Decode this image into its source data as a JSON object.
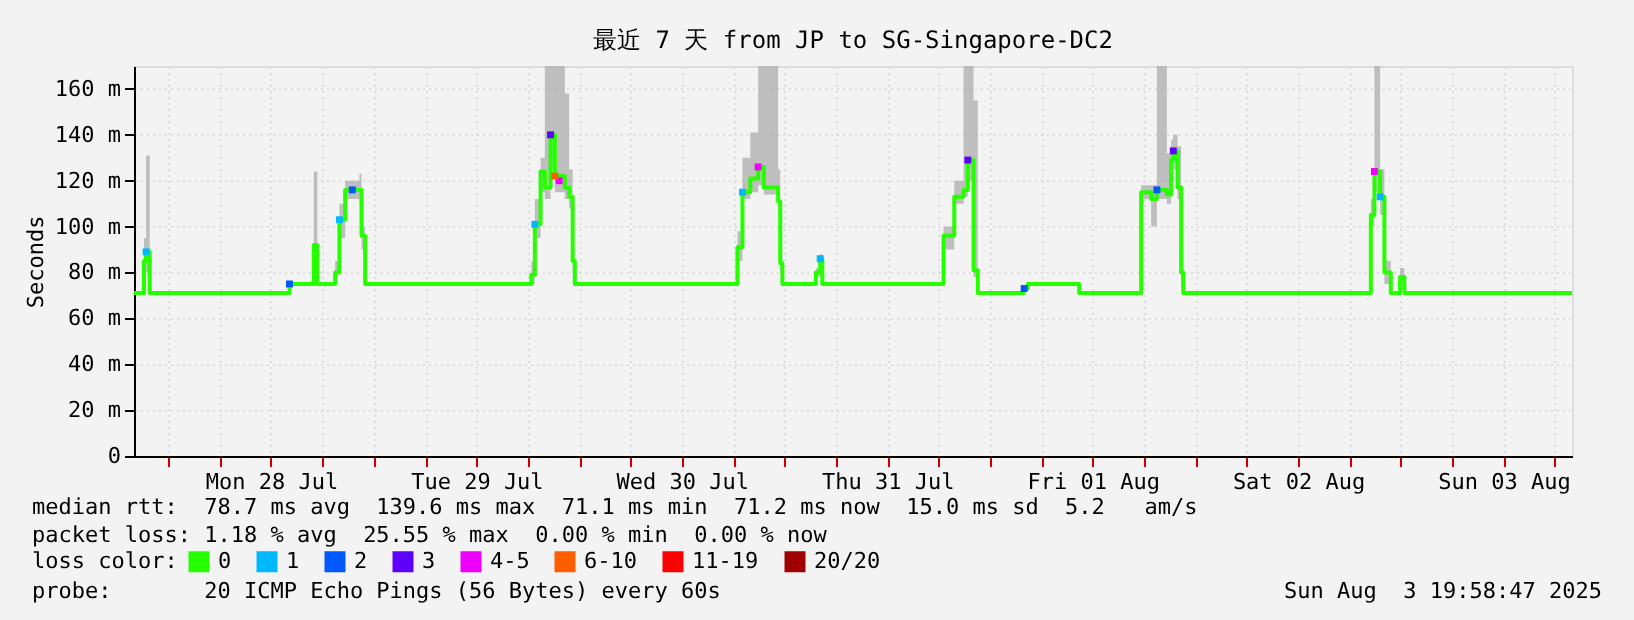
{
  "chart_data": {
    "type": "step",
    "title": "最近 7 天 from JP to SG-Singapore-DC2",
    "ylabel": "Seconds",
    "legend_title": "loss color:",
    "xlim": [
      "2025-07-27T20:00",
      "2025-08-03T20:00"
    ],
    "xticks": [
      {
        "value": "2025-07-28T00:00",
        "label": null
      },
      {
        "value": "2025-07-28T06:00",
        "label": null
      },
      {
        "value": "2025-07-28T12:00",
        "label": "Mon 28 Jul"
      },
      {
        "value": "2025-07-28T18:00",
        "label": null
      },
      {
        "value": "2025-07-29T00:00",
        "label": null
      },
      {
        "value": "2025-07-29T06:00",
        "label": null
      },
      {
        "value": "2025-07-29T12:00",
        "label": "Tue 29 Jul"
      },
      {
        "value": "2025-07-29T18:00",
        "label": null
      },
      {
        "value": "2025-07-30T00:00",
        "label": null
      },
      {
        "value": "2025-07-30T06:00",
        "label": null
      },
      {
        "value": "2025-07-30T12:00",
        "label": "Wed 30 Jul"
      },
      {
        "value": "2025-07-30T18:00",
        "label": null
      },
      {
        "value": "2025-07-31T00:00",
        "label": null
      },
      {
        "value": "2025-07-31T06:00",
        "label": null
      },
      {
        "value": "2025-07-31T12:00",
        "label": "Thu 31 Jul"
      },
      {
        "value": "2025-07-31T18:00",
        "label": null
      },
      {
        "value": "2025-08-01T00:00",
        "label": null
      },
      {
        "value": "2025-08-01T06:00",
        "label": null
      },
      {
        "value": "2025-08-01T12:00",
        "label": "Fri 01 Aug"
      },
      {
        "value": "2025-08-01T18:00",
        "label": null
      },
      {
        "value": "2025-08-02T00:00",
        "label": null
      },
      {
        "value": "2025-08-02T06:00",
        "label": null
      },
      {
        "value": "2025-08-02T12:00",
        "label": "Sat 02 Aug"
      },
      {
        "value": "2025-08-02T18:00",
        "label": null
      },
      {
        "value": "2025-08-03T00:00",
        "label": null
      },
      {
        "value": "2025-08-03T06:00",
        "label": null
      },
      {
        "value": "2025-08-03T12:00",
        "label": "Sun 03 Aug"
      },
      {
        "value": "2025-08-03T18:00",
        "label": null
      }
    ],
    "ylim": [
      0,
      170
    ],
    "yticks": [
      0,
      {
        "value": 20,
        "label": "20 m"
      },
      {
        "value": 40,
        "label": "40 m"
      },
      {
        "value": 60,
        "label": "60 m"
      },
      {
        "value": 80,
        "label": "80 m"
      },
      {
        "value": 100,
        "label": "100 m"
      },
      {
        "value": 120,
        "label": "120 m"
      },
      {
        "value": 140,
        "label": "140 m"
      },
      {
        "value": 160,
        "label": "160 m"
      }
    ],
    "grid": true,
    "legend": "bottom",
    "series": [
      {
        "name": "0",
        "color": "#26ff00",
        "x": [
          "2025-07-27T20:00",
          "2025-07-27T20:55",
          "2025-07-27T21:10",
          "2025-07-27T21:25",
          "2025-07-27T21:50",
          "2025-07-28T13:30",
          "2025-07-28T14:10",
          "2025-07-28T17:00",
          "2025-07-28T17:25",
          "2025-07-28T19:30",
          "2025-07-28T20:00",
          "2025-07-28T20:40",
          "2025-07-28T22:20",
          "2025-07-28T22:35",
          "2025-07-28T23:00",
          "2025-07-29T18:05",
          "2025-07-29T18:25",
          "2025-07-29T18:50",
          "2025-07-29T19:30",
          "2025-07-29T20:00",
          "2025-07-29T20:40",
          "2025-07-29T21:10",
          "2025-07-29T22:20",
          "2025-07-29T22:50",
          "2025-07-29T23:15",
          "2025-07-29T23:30",
          "2025-07-30T17:55",
          "2025-07-30T18:30",
          "2025-07-30T19:05",
          "2025-07-30T20:00",
          "2025-07-30T20:55",
          "2025-07-30T21:35",
          "2025-07-30T23:15",
          "2025-07-30T23:30",
          "2025-07-30T23:45",
          "2025-07-31T03:30",
          "2025-07-31T03:40",
          "2025-07-31T04:10",
          "2025-07-31T04:25",
          "2025-07-31T18:25",
          "2025-07-31T18:35",
          "2025-07-31T19:50",
          "2025-07-31T20:55",
          "2025-07-31T21:25",
          "2025-07-31T22:05",
          "2025-07-31T22:35",
          "2025-08-01T03:40",
          "2025-08-01T03:55",
          "2025-08-01T04:25",
          "2025-08-01T10:10",
          "2025-08-01T10:25",
          "2025-08-01T17:25",
          "2025-08-01T17:40",
          "2025-08-01T18:50",
          "2025-08-01T19:30",
          "2025-08-01T20:40",
          "2025-08-01T21:10",
          "2025-08-01T21:25",
          "2025-08-01T21:55",
          "2025-08-01T22:20",
          "2025-08-01T22:35",
          "2025-08-02T20:10",
          "2025-08-02T20:30",
          "2025-08-02T20:55",
          "2025-08-02T21:35",
          "2025-08-02T22:05",
          "2025-08-02T22:50",
          "2025-08-02T23:55",
          "2025-08-03T00:25",
          "2025-08-03T20:00"
        ],
        "values": [
          71,
          71,
          85,
          89,
          71,
          71,
          75,
          92,
          75,
          80,
          103,
          116,
          116,
          96,
          75,
          75,
          79,
          101,
          124,
          117,
          140,
          122,
          117,
          113,
          85,
          75,
          75,
          91,
          115,
          121,
          126,
          117,
          111,
          84,
          75,
          75,
          80,
          86,
          75,
          75,
          96,
          113,
          116,
          129,
          81,
          71,
          71,
          73,
          75,
          75,
          71,
          71,
          115,
          112,
          116,
          114,
          129,
          133,
          117,
          80,
          71,
          71,
          105,
          124,
          113,
          80,
          71,
          78,
          71,
          71
        ],
        "lower": [
          71,
          71,
          80,
          80,
          71,
          71,
          75,
          80,
          75,
          80,
          95,
          112,
          110,
          90,
          75,
          75,
          75,
          95,
          115,
          112,
          125,
          115,
          112,
          108,
          80,
          75,
          75,
          85,
          112,
          115,
          118,
          114,
          106,
          80,
          75,
          75,
          78,
          80,
          75,
          75,
          90,
          110,
          113,
          120,
          78,
          71,
          71,
          72,
          75,
          75,
          71,
          71,
          112,
          100,
          112,
          110,
          120,
          125,
          112,
          75,
          71,
          71,
          100,
          115,
          105,
          75,
          71,
          73,
          71,
          71
        ],
        "upper": [
          71,
          71,
          95,
          131,
          71,
          71,
          75,
          124,
          75,
          85,
          110,
          120,
          123,
          100,
          75,
          75,
          85,
          112,
          130,
          170,
          170,
          170,
          158,
          125,
          90,
          75,
          75,
          98,
          130,
          141,
          170,
          170,
          125,
          90,
          75,
          75,
          82,
          88,
          75,
          75,
          100,
          120,
          170,
          170,
          155,
          71,
          71,
          74,
          75,
          75,
          71,
          71,
          118,
          118,
          170,
          132,
          138,
          140,
          135,
          90,
          71,
          71,
          112,
          170,
          125,
          85,
          71,
          82,
          71,
          71
        ]
      },
      {
        "name": "1",
        "type": "scatter",
        "color": "#00b8ff",
        "x": [
          "2025-07-27T21:25",
          "2025-07-28T20:00",
          "2025-07-29T18:50",
          "2025-07-30T19:05",
          "2025-07-31T04:10",
          "2025-08-02T21:35"
        ],
        "values": [
          89,
          103,
          101,
          115,
          86,
          113
        ]
      },
      {
        "name": "2",
        "type": "scatter",
        "color": "#0059ff",
        "x": [
          "2025-07-28T14:10",
          "2025-07-28T21:30",
          "2025-08-01T04:00",
          "2025-08-01T19:30"
        ],
        "values": [
          75,
          116,
          73,
          116
        ]
      },
      {
        "name": "3",
        "type": "scatter",
        "color": "#5e00ff",
        "x": [
          "2025-07-29T20:40",
          "2025-07-31T21:25",
          "2025-08-01T21:25"
        ],
        "values": [
          140,
          129,
          133
        ]
      },
      {
        "name": "4-5",
        "type": "scatter",
        "color": "#ee00ff",
        "x": [
          "2025-07-29T21:40",
          "2025-07-30T20:55",
          "2025-08-02T20:55"
        ],
        "values": [
          120,
          126,
          124
        ]
      },
      {
        "name": "6-10",
        "type": "scatter",
        "color": "#ff5e00",
        "x": [
          "2025-07-29T21:10"
        ],
        "values": [
          122
        ]
      },
      {
        "name": "11-19",
        "type": "scatter",
        "color": "#ff0000"
      },
      {
        "name": "20/20",
        "type": "scatter",
        "color": "#a10000"
      }
    ],
    "annotations": [
      "median rtt:  78.7 ms avg  139.6 ms max  71.1 ms min  71.2 ms now  15.0 ms sd  5.2   am/s",
      "packet loss: 1.18 % avg  25.55 % max  0.00 % min  0.00 % now",
      "probe:       20 ICMP Echo Pings (56 Bytes) every 60s",
      "Sun Aug  3 19:58:47 2025"
    ]
  }
}
